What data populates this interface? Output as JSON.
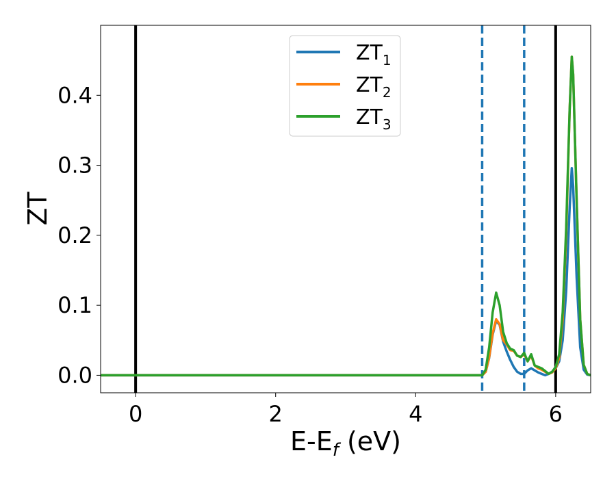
{
  "chart_data": {
    "type": "line",
    "xlabel": "E-E",
    "xlabel_sub": "f",
    "xlabel_suffix": " (eV)",
    "ylabel": "ZT",
    "xlim": [
      -0.5,
      6.5
    ],
    "ylim": [
      -0.025,
      0.5
    ],
    "xticks": [
      0,
      2,
      4,
      6
    ],
    "xtick_labels": [
      "0",
      "2",
      "4",
      "6"
    ],
    "yticks": [
      0.0,
      0.1,
      0.2,
      0.3,
      0.4
    ],
    "ytick_labels": [
      "0.0",
      "0.1",
      "0.2",
      "0.3",
      "0.4"
    ],
    "grid": false,
    "legend_position": "top-center",
    "series": [
      {
        "name": "ZT",
        "name_sub": "1",
        "color": "#1f77b4",
        "x": [
          -0.5,
          4.9,
          4.95,
          5.0,
          5.05,
          5.1,
          5.15,
          5.2,
          5.25,
          5.3,
          5.35,
          5.4,
          5.45,
          5.5,
          5.55,
          5.6,
          5.65,
          5.7,
          5.75,
          5.8,
          5.85,
          5.9,
          5.95,
          6.0,
          6.05,
          6.1,
          6.15,
          6.2,
          6.23,
          6.25,
          6.3,
          6.35,
          6.4,
          6.45,
          6.5
        ],
        "y": [
          0.0,
          0.0,
          0.0,
          0.005,
          0.025,
          0.058,
          0.078,
          0.072,
          0.048,
          0.034,
          0.022,
          0.012,
          0.005,
          0.002,
          0.002,
          0.007,
          0.01,
          0.007,
          0.004,
          0.002,
          0.0,
          0.002,
          0.005,
          0.01,
          0.02,
          0.05,
          0.12,
          0.24,
          0.296,
          0.27,
          0.14,
          0.04,
          0.008,
          0.001,
          0.0
        ]
      },
      {
        "name": "ZT",
        "name_sub": "2",
        "color": "#ff7f0e",
        "x": [
          -0.5,
          4.9,
          4.95,
          5.0,
          5.05,
          5.1,
          5.15,
          5.2,
          5.25,
          5.3,
          5.35,
          5.4,
          5.45,
          5.5,
          5.55,
          5.6,
          5.65,
          5.7,
          5.75,
          5.8,
          5.85,
          5.9,
          5.95,
          6.0,
          6.05,
          6.1,
          6.15,
          6.2,
          6.23,
          6.25,
          6.3,
          6.35,
          6.4,
          6.45,
          6.5
        ],
        "y": [
          0.0,
          0.0,
          0.0,
          0.005,
          0.026,
          0.06,
          0.08,
          0.073,
          0.05,
          0.044,
          0.036,
          0.035,
          0.028,
          0.026,
          0.03,
          0.02,
          0.028,
          0.014,
          0.01,
          0.008,
          0.005,
          0.002,
          0.004,
          0.01,
          0.025,
          0.08,
          0.2,
          0.38,
          0.455,
          0.43,
          0.25,
          0.08,
          0.015,
          0.002,
          0.0
        ]
      },
      {
        "name": "ZT",
        "name_sub": "3",
        "color": "#2ca02c",
        "x": [
          -0.5,
          4.9,
          4.95,
          5.0,
          5.05,
          5.1,
          5.15,
          5.2,
          5.25,
          5.3,
          5.35,
          5.4,
          5.45,
          5.5,
          5.55,
          5.6,
          5.65,
          5.7,
          5.75,
          5.8,
          5.85,
          5.9,
          5.95,
          6.0,
          6.05,
          6.1,
          6.15,
          6.2,
          6.23,
          6.25,
          6.3,
          6.35,
          6.4,
          6.45,
          6.5
        ],
        "y": [
          0.0,
          0.0,
          0.0,
          0.008,
          0.04,
          0.09,
          0.118,
          0.1,
          0.062,
          0.046,
          0.038,
          0.036,
          0.028,
          0.026,
          0.032,
          0.02,
          0.03,
          0.014,
          0.012,
          0.01,
          0.006,
          0.002,
          0.005,
          0.012,
          0.03,
          0.09,
          0.21,
          0.38,
          0.455,
          0.43,
          0.25,
          0.08,
          0.015,
          0.002,
          0.0
        ]
      }
    ],
    "vlines": [
      {
        "x": 0.0,
        "style": "solid",
        "color": "#000000"
      },
      {
        "x": 6.0,
        "style": "solid",
        "color": "#000000"
      },
      {
        "x": 4.95,
        "style": "dashed",
        "color": "#1f77b4"
      },
      {
        "x": 5.55,
        "style": "dashed",
        "color": "#1f77b4"
      }
    ]
  }
}
